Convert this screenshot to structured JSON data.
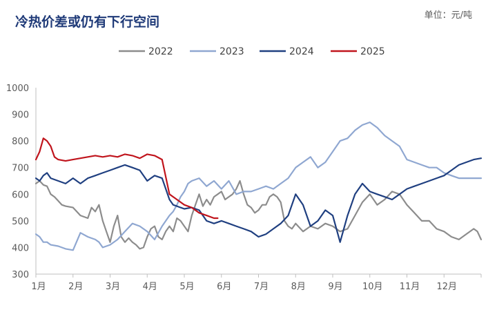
{
  "chart_data": {
    "type": "line",
    "title": "冷热价差或仍有下行空间",
    "unit": "单位：元/吨",
    "xlabel": "",
    "ylabel": "",
    "xlim": [
      0,
      12
    ],
    "ylim": [
      300,
      1000
    ],
    "yticks": [
      300,
      400,
      500,
      600,
      700,
      800,
      900,
      1000
    ],
    "xticks": [
      "1月",
      "2月",
      "3月",
      "4月",
      "5月",
      "6月",
      "7月",
      "8月",
      "9月",
      "10月",
      "11月",
      "12月"
    ],
    "legend_position": "top-center",
    "grid": false,
    "series": [
      {
        "name": "2022",
        "color": "#8c8c8c",
        "x": [
          0,
          0.1,
          0.2,
          0.3,
          0.4,
          0.5,
          0.6,
          0.7,
          0.8,
          1.0,
          1.2,
          1.4,
          1.5,
          1.6,
          1.7,
          1.8,
          1.9,
          2.0,
          2.1,
          2.2,
          2.3,
          2.4,
          2.5,
          2.6,
          2.7,
          2.8,
          2.9,
          3.0,
          3.1,
          3.2,
          3.3,
          3.4,
          3.5,
          3.6,
          3.7,
          3.8,
          3.9,
          4.0,
          4.1,
          4.2,
          4.3,
          4.4,
          4.5,
          4.6,
          4.7,
          4.8,
          4.9,
          5.0,
          5.1,
          5.2,
          5.3,
          5.4,
          5.5,
          5.6,
          5.7,
          5.8,
          5.9,
          6.0,
          6.1,
          6.2,
          6.3,
          6.4,
          6.5,
          6.6,
          6.7,
          6.8,
          6.9,
          7.0,
          7.2,
          7.4,
          7.6,
          7.8,
          8.0,
          8.2,
          8.4,
          8.6,
          8.8,
          9.0,
          9.2,
          9.4,
          9.6,
          9.8,
          10.0,
          10.2,
          10.4,
          10.6,
          10.8,
          11.0,
          11.2,
          11.4,
          11.6,
          11.8,
          11.9,
          12.0
        ],
        "y": [
          640,
          650,
          635,
          630,
          600,
          590,
          575,
          560,
          555,
          550,
          520,
          510,
          550,
          535,
          560,
          500,
          460,
          420,
          480,
          520,
          440,
          420,
          435,
          420,
          410,
          395,
          400,
          440,
          470,
          480,
          440,
          430,
          460,
          480,
          460,
          510,
          500,
          480,
          460,
          520,
          560,
          600,
          555,
          580,
          560,
          590,
          600,
          610,
          580,
          590,
          600,
          620,
          650,
          600,
          560,
          550,
          530,
          540,
          560,
          560,
          590,
          600,
          590,
          570,
          500,
          480,
          470,
          490,
          460,
          480,
          470,
          490,
          480,
          460,
          470,
          520,
          570,
          600,
          560,
          580,
          610,
          600,
          560,
          530,
          500,
          500,
          470,
          460,
          440,
          430,
          450,
          470,
          460,
          430
        ]
      },
      {
        "name": "2023",
        "color": "#8fa7d1",
        "x": [
          0,
          0.1,
          0.2,
          0.3,
          0.4,
          0.6,
          0.8,
          1.0,
          1.2,
          1.4,
          1.6,
          1.7,
          1.8,
          2.0,
          2.2,
          2.4,
          2.6,
          2.8,
          3.0,
          3.2,
          3.4,
          3.6,
          3.7,
          3.8,
          3.9,
          4.0,
          4.1,
          4.2,
          4.4,
          4.6,
          4.8,
          5.0,
          5.2,
          5.4,
          5.6,
          5.8,
          6.0,
          6.2,
          6.4,
          6.6,
          6.8,
          7.0,
          7.2,
          7.4,
          7.6,
          7.8,
          8.0,
          8.2,
          8.4,
          8.6,
          8.8,
          9.0,
          9.2,
          9.4,
          9.6,
          9.8,
          10.0,
          10.2,
          10.4,
          10.6,
          10.8,
          11.0,
          11.2,
          11.4,
          11.6,
          11.8,
          12.0
        ],
        "y": [
          450,
          440,
          420,
          420,
          410,
          405,
          395,
          390,
          455,
          440,
          430,
          420,
          400,
          410,
          430,
          460,
          490,
          480,
          460,
          430,
          480,
          520,
          535,
          560,
          590,
          610,
          640,
          650,
          660,
          630,
          650,
          620,
          650,
          600,
          610,
          610,
          620,
          630,
          620,
          640,
          660,
          700,
          720,
          740,
          700,
          720,
          760,
          800,
          810,
          840,
          860,
          870,
          850,
          820,
          800,
          780,
          730,
          720,
          710,
          700,
          700,
          680,
          670,
          660,
          660,
          660,
          660
        ]
      },
      {
        "name": "2024",
        "color": "#1f3f80",
        "x": [
          0,
          0.1,
          0.2,
          0.3,
          0.4,
          0.6,
          0.8,
          1.0,
          1.2,
          1.4,
          1.6,
          1.8,
          2.0,
          2.2,
          2.4,
          2.6,
          2.8,
          3.0,
          3.1,
          3.2,
          3.4,
          3.6,
          3.7,
          3.8,
          3.9,
          4.0,
          4.2,
          4.4,
          4.6,
          4.8,
          5.0,
          5.2,
          5.4,
          5.6,
          5.8,
          6.0,
          6.2,
          6.4,
          6.6,
          6.8,
          7.0,
          7.2,
          7.4,
          7.6,
          7.8,
          8.0,
          8.2,
          8.4,
          8.6,
          8.8,
          9.0,
          9.2,
          9.4,
          9.6,
          9.8,
          10.0,
          10.2,
          10.4,
          10.6,
          10.8,
          11.0,
          11.2,
          11.4,
          11.6,
          11.8,
          12.0
        ],
        "y": [
          660,
          650,
          670,
          680,
          660,
          650,
          640,
          660,
          640,
          660,
          670,
          680,
          690,
          700,
          710,
          700,
          690,
          650,
          660,
          670,
          660,
          580,
          560,
          555,
          550,
          545,
          550,
          540,
          500,
          490,
          500,
          490,
          480,
          470,
          460,
          440,
          450,
          470,
          490,
          520,
          600,
          560,
          480,
          500,
          540,
          520,
          420,
          520,
          600,
          640,
          610,
          600,
          590,
          580,
          600,
          620,
          630,
          640,
          650,
          660,
          670,
          690,
          710,
          720,
          730,
          735
        ]
      },
      {
        "name": "2025",
        "color": "#c0141c",
        "x": [
          0,
          0.1,
          0.2,
          0.3,
          0.4,
          0.5,
          0.6,
          0.8,
          1.0,
          1.2,
          1.4,
          1.6,
          1.8,
          2.0,
          2.2,
          2.4,
          2.6,
          2.8,
          3.0,
          3.2,
          3.4,
          3.6,
          3.8,
          4.0,
          4.2,
          4.4,
          4.6,
          4.8,
          4.9
        ],
        "y": [
          730,
          760,
          810,
          800,
          780,
          740,
          730,
          725,
          730,
          735,
          740,
          745,
          740,
          745,
          740,
          750,
          745,
          735,
          750,
          745,
          730,
          600,
          580,
          560,
          550,
          530,
          520,
          510,
          510
        ]
      }
    ]
  }
}
